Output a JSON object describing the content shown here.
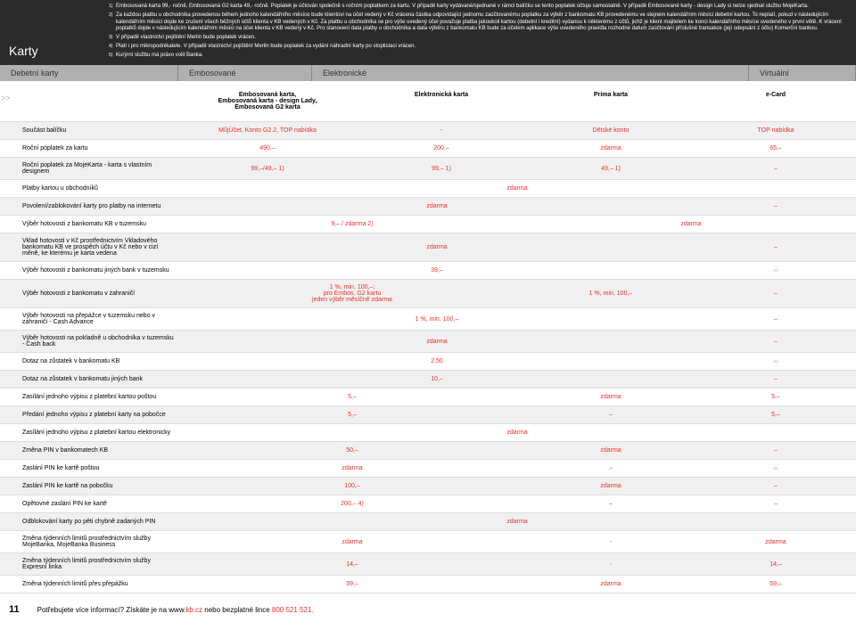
{
  "header": {
    "title": "Karty"
  },
  "footnotes": [
    {
      "n": "1",
      "t": "Embosovaná karta 99,- ročně, Embosovaná G2 karta 49,- ročně. Poplatek je účtován společně s ročním poplatkem za kartu. V případě karty vydávané/sjednané v rámci balíčku se tento poplatek účtuje samostatně. V případě Embosované karty - design Lady si nelze sjednat službu MojeKarta."
    },
    {
      "n": "2",
      "t": "Za každou platbu u obchodníka provedenou během jednoho kalendářního měsíce bude klientovi na účet vedený v Kč vrácena částka odpovídající jednomu zaúčtovanému poplatku za výběr z bankomatu KB provedenému ve stejném kalendářním měsíci debetní kartou. To neplatí, pokud v následujícím kalendářním měsíci dojde ke zrušení všech běžných účtů klienta v KB vedených v Kč. Za platbu u obchodníka se pro výše uvedený účel považuje platba jakoukoli kartou (debetní i kreditní) vydanou k některému z účtů, jichž je klient majitelem ke konci kalendářního měsíce uvedeného v první větě. K vrácení poplatků dojde v následujícím kalendářním měsíci na účet klienta v KB vedený v Kč. Pro stanovení data platby u obchodníka a data výběru z bankomatu KB bude za účelem aplikace výše uvedeného pravidla rozhodné datum zaúčtování příslušné transakce (její odepsání z účtu) Komerční bankou."
    },
    {
      "n": "3",
      "t": "V případě vlastnictví pojištění Merlin bude poplatek vrácen."
    },
    {
      "n": "4",
      "t": "Platí i pro mikropodnikatele. V případě vlastnictví pojištění Merlin bude poplatek za vydání náhradní karty po stoplistaci vrácen."
    },
    {
      "n": "5",
      "t": "Kurýrní službu má právo volit Banka."
    }
  ],
  "tabs": [
    "Debetní karty",
    "Embosované",
    "Elektronické",
    "Virtuální"
  ],
  "subheads": [
    "Embosovaná karta,\nEmbosovaná karta - design Lady,\nEmbosovaná G2 karta",
    "Elektronická karta",
    "Prima karta",
    "e-Card"
  ],
  "columns": {
    "labels": [
      "Součást balíčku",
      "Roční poplatek za kartu",
      "Roční poplatek za MojeKarta - karta s vlastním designem",
      "Platby kartou u obchodníků",
      "Povolení/zablokování karty pro platby na internetu",
      "Výběr hotovosti z bankomatu KB v tuzemsku",
      "Vklad hotovosti v Kč prostřednictvím Vkladového bankomatu KB ve prospěch účtu v Kč nebo v cizí měně, ke kterému je karta vedena",
      "Výběr hotovosti z bankomatu jiných bank v tuzemsku",
      "Výběr hotovosti z bankomatu v zahraničí",
      "Výběr hotovosti na přepážce v tuzemsku nebo v zahraničí - Cash Advance",
      "Výběr hotovosti na pokladně u obchodníka v tuzemsku - Cash back",
      "Dotaz na zůstatek v bankomatu KB",
      "Dotaz na zůstatek v bankomatu jiných bank",
      "Zasílání jednoho výpisu z platební kartou poštou",
      "Předání jednoho výpisu z platební karty na pobočce",
      "Zasílání jednoho výpisu z platební kartou elektronicky",
      "Změna PIN v bankomatech KB",
      "Zaslání PIN ke kartě poštou",
      "Zaslání PIN ke kartě na pobočku",
      "Opětovné zaslání PIN ke kartě",
      "Odblokování karty po pěti chybně zadaných PIN",
      "Změna týdenních limitů prostřednictvím služby MojeBanka, MojeBanka Business",
      "Změna týdenních limitů prostřednictvím služby Expresní linka",
      "Změna týdenních limitů přes přepážku"
    ]
  },
  "rows": [
    {
      "shade": true,
      "c": [
        "MůjÚčet, Konto G2.2, TOP nabídka",
        "-",
        "Dětské konto",
        "TOP nabídka"
      ]
    },
    {
      "c": [
        "490,–",
        "200,–",
        "zdarma",
        "65,–"
      ]
    },
    {
      "shade": true,
      "c": [
        "99,–/49,– 1)",
        "99,– 1)",
        "49,– 1)",
        "–"
      ]
    },
    {
      "merged4": "zdarma"
    },
    {
      "shade": true,
      "merged3": "zdarma",
      "c4": "–"
    },
    {
      "merged2": "9,– / zdarma 2)",
      "merged2b": "zdarma"
    },
    {
      "shade": true,
      "merged3": "zdarma",
      "c4": "–"
    },
    {
      "merged3": "39,–",
      "c4": "–"
    },
    {
      "shade": true,
      "c": [
        "1 %, min. 100,–;\npro Embos. G2 kartu\njeden výběr měsíčně zdarma",
        "",
        "1 %, min. 100,–",
        "–"
      ],
      "merge12": "1 %, min. 100,–"
    },
    {
      "merged3": "1 %, min. 100,–",
      "c4": "–"
    },
    {
      "shade": true,
      "merged3": "zdarma",
      "c4": "–"
    },
    {
      "merged3": "2,50",
      "c4": "–"
    },
    {
      "shade": true,
      "merged3": "10,–",
      "c4": "–"
    },
    {
      "c": [
        "5,–",
        "",
        "zdarma",
        "5,–"
      ],
      "merge12": "5,–"
    },
    {
      "shade": true,
      "c": [
        "5,–",
        "",
        "–",
        "5,–"
      ],
      "merge12": "5,–"
    },
    {
      "merged4": "zdarma"
    },
    {
      "shade": true,
      "c": [
        "50,–",
        "",
        "zdarma",
        "–"
      ],
      "merge12": "50,–"
    },
    {
      "c": [
        "zdarma",
        "",
        "–",
        "–"
      ],
      "merge12": "zdarma"
    },
    {
      "shade": true,
      "c": [
        "100,–",
        "",
        "zdarma",
        "–"
      ],
      "merge12": "100,–"
    },
    {
      "c": [
        "200,– 4)",
        "",
        "–",
        "–"
      ],
      "merge12": "200,– 4)"
    },
    {
      "shade": true,
      "merged4": "zdarma"
    },
    {
      "c": [
        "zdarma",
        "",
        "-",
        "zdarma"
      ],
      "merge12": "zdarma"
    },
    {
      "shade": true,
      "c": [
        "14,–",
        "",
        "-",
        "14,–"
      ],
      "merge12": "14,–"
    },
    {
      "c": [
        "59,–",
        "",
        "zdarma",
        "59,–"
      ],
      "merge12": "59,–"
    }
  ],
  "footer": {
    "page": "11",
    "text": "Potřebujete více informací? Získáte je na www.",
    "link": "kb.cz",
    "text2": " nebo bezplatné lince ",
    "phone": "800 521 521."
  }
}
